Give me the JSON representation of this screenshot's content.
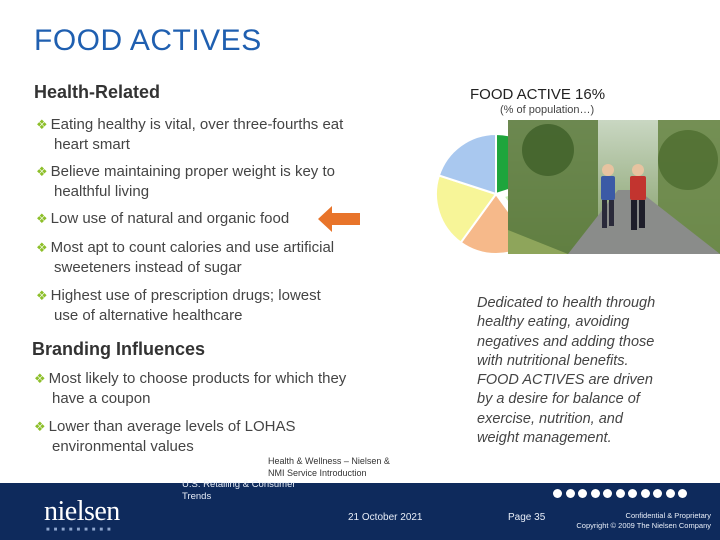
{
  "slide": {
    "title": "FOOD ACTIVES",
    "health_heading": "Health-Related",
    "health_bullets": [
      {
        "line1": "Eating healthy is vital, over three-fourths eat",
        "line2": "heart smart"
      },
      {
        "line1": "Believe maintaining proper weight is key to",
        "line2": "healthful living"
      },
      {
        "line1": "Low use of natural and organic food",
        "line2": ""
      },
      {
        "line1": "Most apt to count calories and use artificial",
        "line2": "sweeteners instead of sugar"
      },
      {
        "line1": "Highest use of prescription drugs; lowest",
        "line2": "use of alternative healthcare"
      }
    ],
    "branding_heading": "Branding Influences",
    "branding_bullets": [
      {
        "line1": "Most likely to choose products for which they",
        "line2": "have a coupon"
      },
      {
        "line1": "Lower than average levels of LOHAS",
        "line2": "environmental values"
      }
    ],
    "pie_title": "FOOD ACTIVE 16%",
    "pie_subtitle": "(% of population…)",
    "description_lines": [
      "Dedicated to health through",
      "healthy eating, avoiding",
      "negatives and adding those",
      "with nutritional benefits.",
      "FOOD ACTIVES are driven",
      "by a desire for balance of",
      "exercise, nutrition, and",
      "weight management."
    ],
    "source_note_line1": "Health & Wellness – Nielsen &",
    "source_note_line2": "NMI Service Introduction",
    "arrow_color": "#e8742a",
    "bullet_color": "#8dbf2a",
    "title_color": "#1f5fb0"
  },
  "footer": {
    "logo_text": "nielsen",
    "category_line1": "U.S. Retailing & Consumer",
    "category_line2": "Trends",
    "date": "21 October 2021",
    "page": "Page 35",
    "confidential_line1": "Confidential & Proprietary",
    "confidential_line2": "Copyright © 2009 The Nielsen Company",
    "bg_color": "#0e2a5c"
  },
  "pie_slices": [
    {
      "color": "#1ea53c",
      "label": ""
    },
    {
      "color": "#c8f0b8",
      "label": ""
    },
    {
      "color": "#f6b98a",
      "label": ""
    },
    {
      "color": "#f7f598",
      "label": ""
    },
    {
      "color": "#a9c8ef",
      "label": ""
    }
  ]
}
